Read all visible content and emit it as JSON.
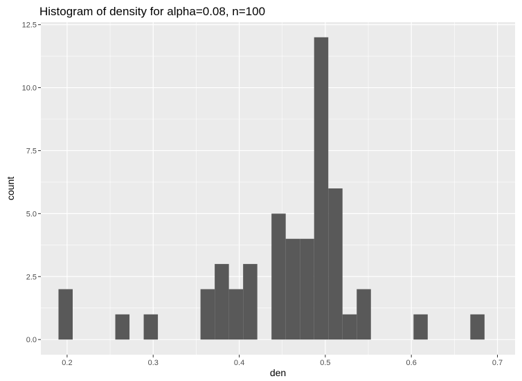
{
  "chart_data": {
    "type": "bar",
    "title": "Histogram of density for alpha=0.08, n=100",
    "xlabel": "den",
    "ylabel": "count",
    "x_ticks": [
      {
        "value": 0.2,
        "label": "0.2"
      },
      {
        "value": 0.3,
        "label": "0.3"
      },
      {
        "value": 0.4,
        "label": "0.4"
      },
      {
        "value": 0.5,
        "label": "0.5"
      },
      {
        "value": 0.6,
        "label": "0.6"
      },
      {
        "value": 0.7,
        "label": "0.7"
      }
    ],
    "y_ticks": [
      {
        "value": 0,
        "label": "0.0"
      },
      {
        "value": 2.5,
        "label": "2.5"
      },
      {
        "value": 5,
        "label": "5.0"
      },
      {
        "value": 7.5,
        "label": "7.5"
      },
      {
        "value": 10,
        "label": "10.0"
      },
      {
        "value": 12.5,
        "label": "12.5"
      }
    ],
    "xlim": [
      0.1695,
      0.7205
    ],
    "ylim": [
      -0.6,
      12.6
    ],
    "grid": true,
    "panel_color": "#ebebeb",
    "grid_color": "#ffffff",
    "bar_color": "#595959",
    "bins": [
      {
        "x0": 0.19,
        "x1": 0.2065,
        "count": 2
      },
      {
        "x0": 0.256,
        "x1": 0.2725,
        "count": 1
      },
      {
        "x0": 0.289,
        "x1": 0.3055,
        "count": 1
      },
      {
        "x0": 0.355,
        "x1": 0.3715,
        "count": 2
      },
      {
        "x0": 0.3715,
        "x1": 0.388,
        "count": 3
      },
      {
        "x0": 0.388,
        "x1": 0.4045,
        "count": 2
      },
      {
        "x0": 0.4045,
        "x1": 0.421,
        "count": 3
      },
      {
        "x0": 0.4375,
        "x1": 0.454,
        "count": 5
      },
      {
        "x0": 0.454,
        "x1": 0.4705,
        "count": 4
      },
      {
        "x0": 0.4705,
        "x1": 0.487,
        "count": 4
      },
      {
        "x0": 0.487,
        "x1": 0.5035,
        "count": 12
      },
      {
        "x0": 0.5035,
        "x1": 0.52,
        "count": 6
      },
      {
        "x0": 0.52,
        "x1": 0.5365,
        "count": 1
      },
      {
        "x0": 0.5365,
        "x1": 0.553,
        "count": 2
      },
      {
        "x0": 0.6025,
        "x1": 0.619,
        "count": 1
      },
      {
        "x0": 0.6685,
        "x1": 0.685,
        "count": 1
      }
    ]
  }
}
